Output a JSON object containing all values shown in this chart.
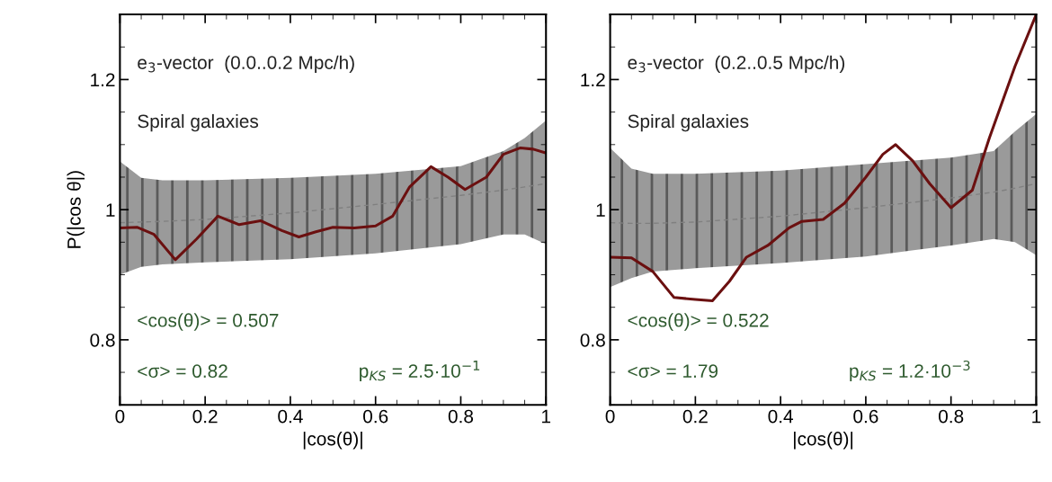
{
  "chart_data": [
    {
      "type": "line",
      "xlabel": "|cos(θ)|",
      "ylabel": "P(|cos θ|)",
      "xlim": [
        0,
        1
      ],
      "ylim": [
        0.7,
        1.3
      ],
      "xticks": [
        0,
        0.2,
        0.4,
        0.6,
        0.8,
        1
      ],
      "yticks": [
        0.8,
        1,
        1.2
      ],
      "grid": false,
      "annotations": [
        "e$_{3}$-vector  (0.0..0.2 Mpc/h)",
        "Spiral galaxies",
        "<cos(θ)> = 0.507",
        "<σ> = 0.82",
        "p$_{KS}$ = 2.5·10$^{−1}$"
      ],
      "series": [
        {
          "color": "#808080",
          "line_style": "dashed",
          "x": [
            0,
            0.05,
            0.1,
            0.2,
            0.4,
            0.6,
            0.8,
            0.9,
            0.95,
            1
          ],
          "values": [
            0.98,
            0.981,
            0.982,
            0.985,
            0.995,
            1.008,
            1.022,
            1.03,
            1.035,
            1.04
          ],
          "lower": [
            0.9,
            0.912,
            0.916,
            0.919,
            0.924,
            0.933,
            0.947,
            0.962,
            0.962,
            0.947
          ],
          "upper": [
            1.074,
            1.049,
            1.045,
            1.045,
            1.049,
            1.055,
            1.067,
            1.09,
            1.11,
            1.137
          ]
        },
        {
          "color": "#6b1010",
          "line_style": "solid",
          "x": [
            0,
            0.04,
            0.08,
            0.13,
            0.18,
            0.23,
            0.28,
            0.33,
            0.38,
            0.42,
            0.46,
            0.5,
            0.55,
            0.6,
            0.64,
            0.68,
            0.73,
            0.77,
            0.81,
            0.86,
            0.9,
            0.94,
            0.97,
            1
          ],
          "values": [
            0.972,
            0.973,
            0.962,
            0.923,
            0.955,
            0.99,
            0.977,
            0.983,
            0.968,
            0.958,
            0.966,
            0.973,
            0.972,
            0.975,
            0.99,
            1.035,
            1.066,
            1.05,
            1.031,
            1.05,
            1.085,
            1.095,
            1.093,
            1.087
          ]
        }
      ]
    },
    {
      "type": "line",
      "xlabel": "|cos(θ)|",
      "xlim": [
        0,
        1
      ],
      "ylim": [
        0.7,
        1.3
      ],
      "xticks": [
        0,
        0.2,
        0.4,
        0.6,
        0.8,
        1
      ],
      "yticks": [
        0.8,
        1,
        1.2
      ],
      "grid": false,
      "annotations": [
        "e$_{3}$-vector  (0.2..0.5 Mpc/h)",
        "Spiral galaxies",
        "<cos(θ)> = 0.522",
        "<σ> = 1.79",
        "p$_{KS}$ = 1.2·10$^{−3}$"
      ],
      "series": [
        {
          "color": "#808080",
          "line_style": "dashed",
          "x": [
            0,
            0.05,
            0.1,
            0.2,
            0.4,
            0.6,
            0.8,
            0.9,
            0.95,
            1
          ],
          "values": [
            0.98,
            0.979,
            0.979,
            0.981,
            0.99,
            1.003,
            1.018,
            1.027,
            1.033,
            1.04
          ],
          "lower": [
            0.881,
            0.895,
            0.905,
            0.91,
            0.918,
            0.928,
            0.945,
            0.955,
            0.95,
            0.93
          ],
          "upper": [
            1.095,
            1.063,
            1.055,
            1.055,
            1.06,
            1.07,
            1.08,
            1.09,
            1.12,
            1.147
          ]
        },
        {
          "color": "#6b1010",
          "line_style": "solid",
          "x": [
            0,
            0.05,
            0.1,
            0.15,
            0.2,
            0.24,
            0.28,
            0.32,
            0.37,
            0.42,
            0.45,
            0.5,
            0.55,
            0.6,
            0.64,
            0.67,
            0.71,
            0.75,
            0.8,
            0.85,
            0.89,
            0.95,
            1
          ],
          "values": [
            0.927,
            0.926,
            0.905,
            0.865,
            0.862,
            0.86,
            0.89,
            0.927,
            0.945,
            0.972,
            0.982,
            0.985,
            1.01,
            1.05,
            1.085,
            1.1,
            1.075,
            1.04,
            1.003,
            1.03,
            1.11,
            1.22,
            1.3
          ]
        }
      ]
    }
  ]
}
